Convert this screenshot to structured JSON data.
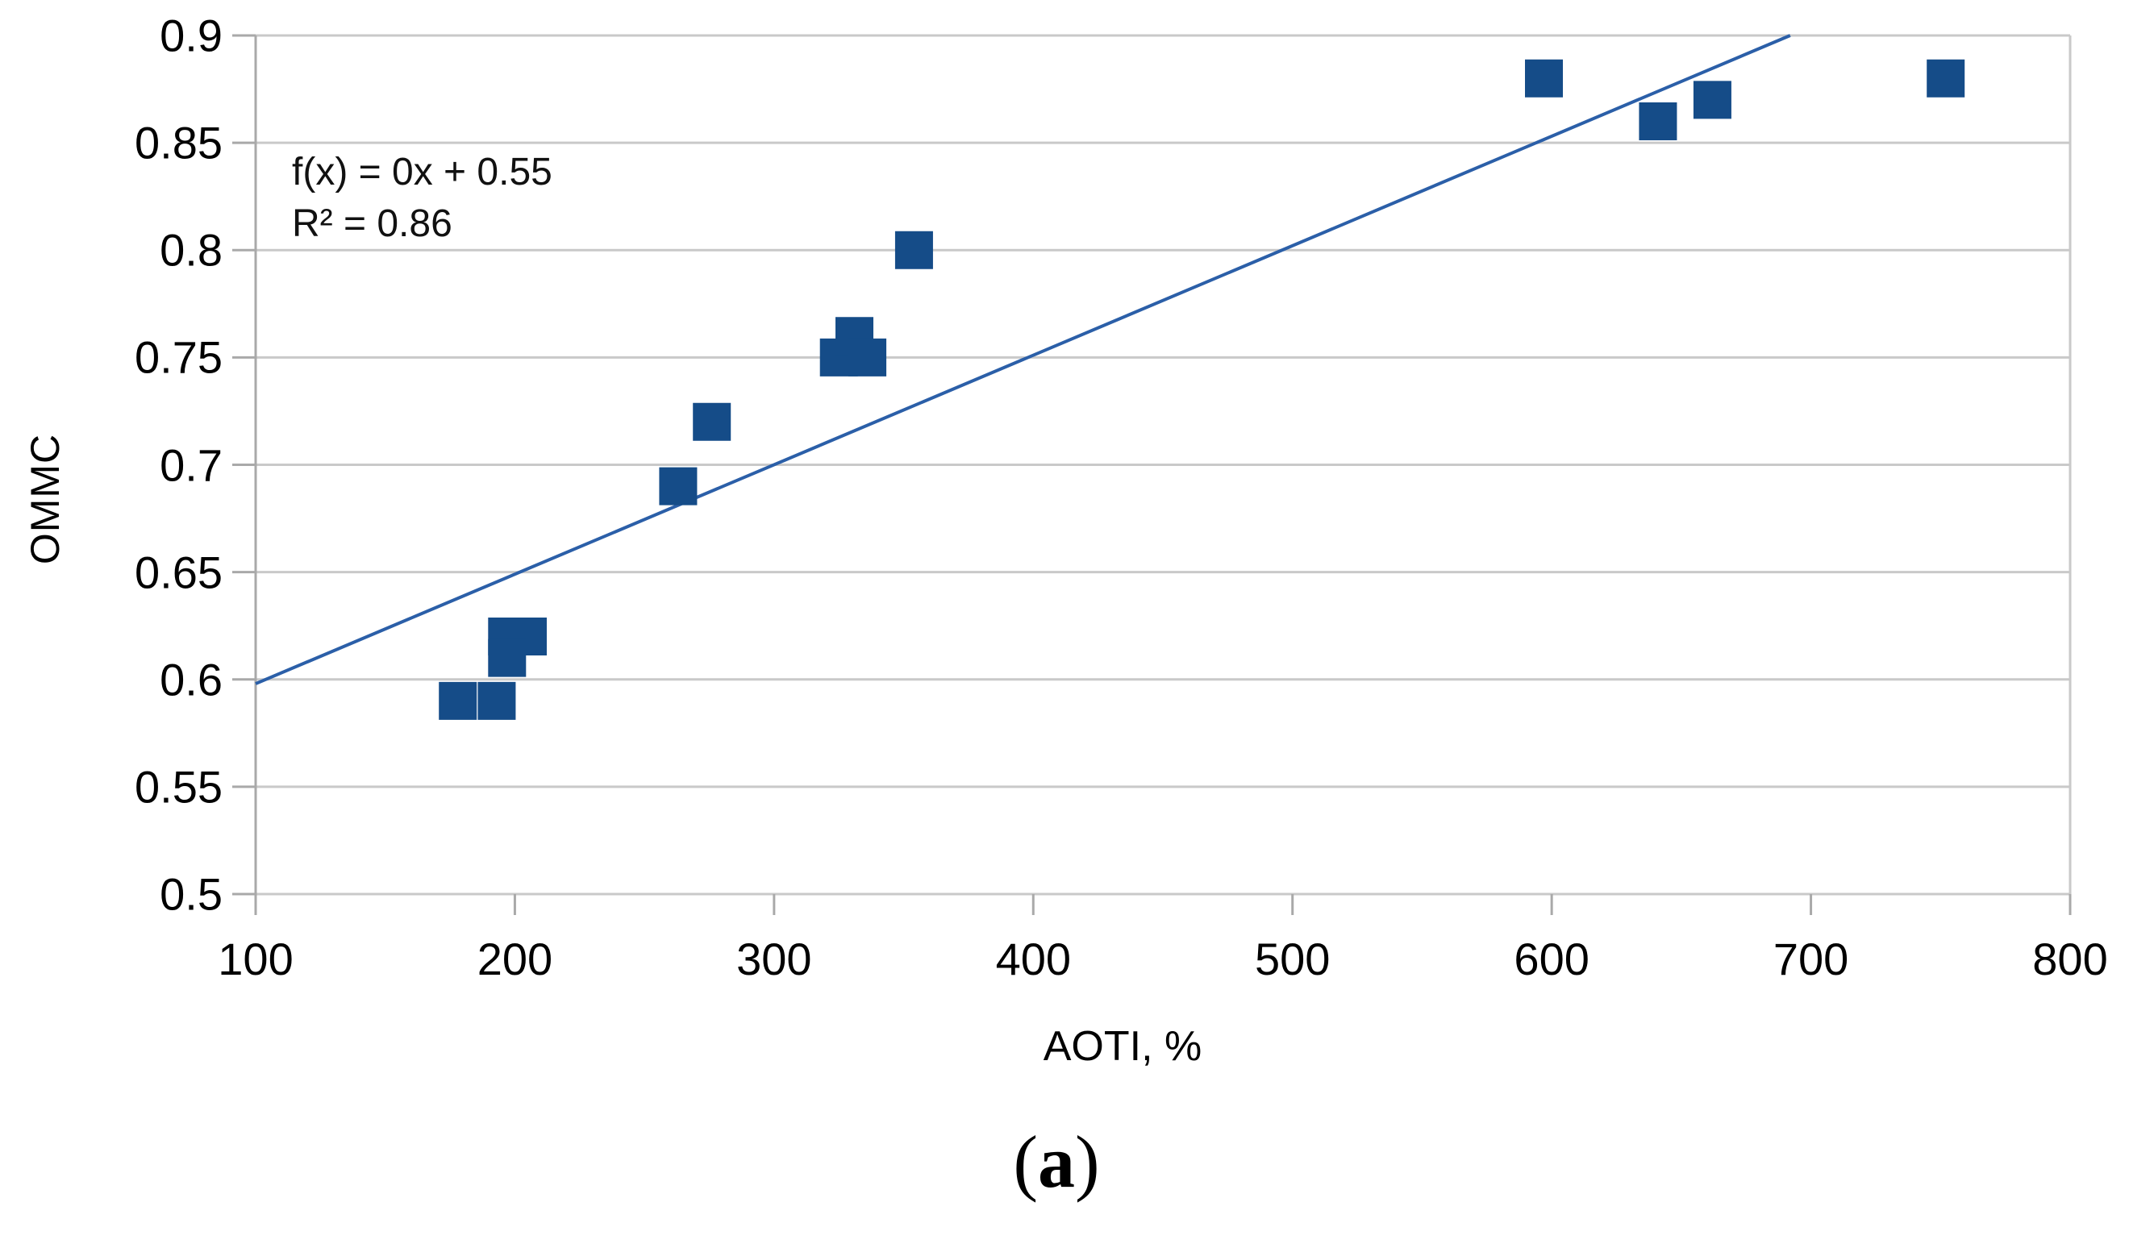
{
  "chart_data": {
    "type": "scatter",
    "title": "",
    "xlabel": "AOTI, %",
    "ylabel": "OMMC",
    "xlim": [
      100,
      800
    ],
    "ylim": [
      0.5,
      0.9
    ],
    "grid": "horizontal",
    "legend": "none",
    "x_ticks": [
      100,
      200,
      300,
      400,
      500,
      600,
      700,
      800
    ],
    "y_ticks": [
      0.9,
      0.85,
      0.8,
      0.75,
      0.7,
      0.65,
      0.6,
      0.55,
      0.5
    ],
    "x_tick_labels": [
      "100",
      "200",
      "300",
      "400",
      "500",
      "600",
      "700",
      "800"
    ],
    "y_tick_labels": [
      "0.9",
      "0.85",
      "0.8",
      "0.75",
      "0.7",
      "0.65",
      "0.6",
      "0.55",
      "0.5"
    ],
    "points": [
      [
        178,
        0.59
      ],
      [
        193,
        0.59
      ],
      [
        197,
        0.62
      ],
      [
        205,
        0.62
      ],
      [
        197,
        0.61
      ],
      [
        263,
        0.69
      ],
      [
        276,
        0.72
      ],
      [
        325,
        0.75
      ],
      [
        331,
        0.76
      ],
      [
        336,
        0.75
      ],
      [
        354,
        0.8
      ],
      [
        597,
        0.88
      ],
      [
        641,
        0.86
      ],
      [
        662,
        0.87
      ],
      [
        752,
        0.88
      ]
    ],
    "trendline": {
      "x1": 100,
      "y1": 0.598,
      "x2": 692,
      "y2": 0.9,
      "equation": "f(x) = 0x + 0.55",
      "r_squared": "R² = 0.86"
    },
    "colors": {
      "marker": "#154C88",
      "trendline": "#2B5FA8",
      "gridline": "#C9C9C9",
      "axis": "#A9A9A9",
      "text": "#000000"
    }
  },
  "caption": {
    "open": "(",
    "letter": "a",
    "close": ")"
  }
}
